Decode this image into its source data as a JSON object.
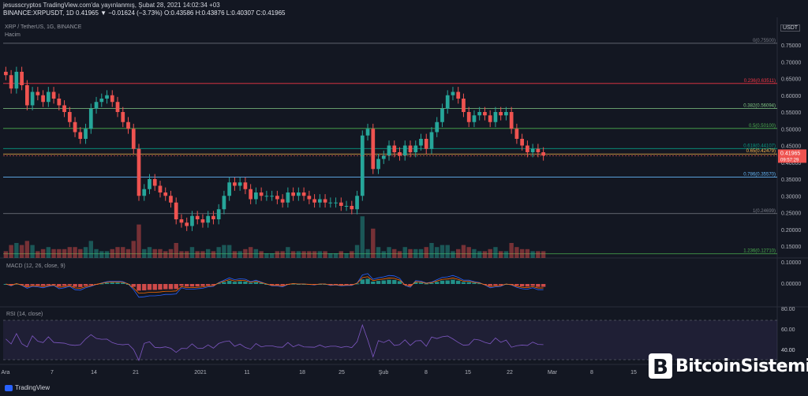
{
  "header": {
    "line1": "jesusscryptos TradingView.com'da yayınlanmış, Şubat 28, 2021 14:02:34 +03",
    "ticker": "BINANCE:XRPUSDT, 1D 0.41965 ▼ −0.01624 (−3.73%) O:0.43586 H:0.43876 L:0.40307 C:0.41965",
    "pair": "XRP / TetherUS, 1G, BINANCE",
    "volume_label": "Hacim",
    "currency": "USDT"
  },
  "brand": {
    "name": "BitcoinSistemi",
    "tv": "TradingView"
  },
  "colors": {
    "up": "#26a69a",
    "down": "#ef5350",
    "bg": "#131722",
    "macd": "#2962ff",
    "signal": "#ff6d00",
    "rsi": "#7e57c2"
  },
  "chart_data": {
    "type": "candlestick",
    "price_axis": {
      "ticks": [
        "0.75000",
        "0.70000",
        "0.65000",
        "0.60000",
        "0.55000",
        "0.50000",
        "0.45000",
        "0.40000",
        "0.35000",
        "0.30000",
        "0.25000",
        "0.20000",
        "0.15000"
      ]
    },
    "fib_levels": [
      {
        "label": "0(0.75500)",
        "value": 0.755,
        "color": "#787b86"
      },
      {
        "label": "0.236(0.63511)",
        "value": 0.63511,
        "color": "#f23645"
      },
      {
        "label": "0.382(0.56094)",
        "value": 0.56094,
        "color": "#81c784"
      },
      {
        "label": "0.5(0.50100)",
        "value": 0.501,
        "color": "#4caf50"
      },
      {
        "label": "0.618(0.44107)",
        "value": 0.44107,
        "color": "#089981"
      },
      {
        "label": "0.65(0.42479)",
        "value": 0.42479,
        "color": "#ffb74d"
      },
      {
        "label": "0.786(0.35570)",
        "value": 0.3557,
        "color": "#64b5f6"
      },
      {
        "label": "1(0.24699)",
        "value": 0.24699,
        "color": "#787b86"
      },
      {
        "label": "1.236(0.12710)",
        "value": 0.1271,
        "color": "#4caf50"
      }
    ],
    "last_price": {
      "value": 0.41965,
      "label": "0.41965",
      "countdown": "09:57:29"
    },
    "x_ticks": [
      "Ara",
      "7",
      "14",
      "21",
      "2021",
      "11",
      "18",
      "25",
      "Şub",
      "8",
      "15",
      "22",
      "Mar",
      "8",
      "15"
    ],
    "closes": [
      0.66,
      0.62,
      0.67,
      0.63,
      0.57,
      0.61,
      0.6,
      0.58,
      0.61,
      0.59,
      0.57,
      0.55,
      0.52,
      0.49,
      0.47,
      0.5,
      0.56,
      0.58,
      0.59,
      0.6,
      0.58,
      0.55,
      0.52,
      0.5,
      0.44,
      0.3,
      0.32,
      0.35,
      0.33,
      0.31,
      0.3,
      0.28,
      0.23,
      0.22,
      0.21,
      0.24,
      0.23,
      0.22,
      0.24,
      0.23,
      0.26,
      0.3,
      0.34,
      0.33,
      0.34,
      0.32,
      0.29,
      0.31,
      0.3,
      0.3,
      0.3,
      0.29,
      0.28,
      0.31,
      0.3,
      0.31,
      0.3,
      0.29,
      0.28,
      0.29,
      0.28,
      0.28,
      0.28,
      0.27,
      0.27,
      0.26,
      0.3,
      0.48,
      0.5,
      0.38,
      0.41,
      0.42,
      0.45,
      0.43,
      0.42,
      0.45,
      0.43,
      0.45,
      0.47,
      0.44,
      0.49,
      0.52,
      0.56,
      0.6,
      0.61,
      0.59,
      0.55,
      0.52,
      0.54,
      0.55,
      0.54,
      0.52,
      0.55,
      0.54,
      0.55,
      0.5,
      0.47,
      0.45,
      0.43,
      0.44,
      0.43,
      0.42
    ],
    "macd": {
      "label": "MACD (12, 26, close, 9)",
      "ticks": [
        "0.10000",
        "0.00000"
      ]
    },
    "rsi": {
      "label": "RSI (14, close)",
      "ticks": [
        "80.00",
        "60.00",
        "40.00"
      ]
    }
  }
}
